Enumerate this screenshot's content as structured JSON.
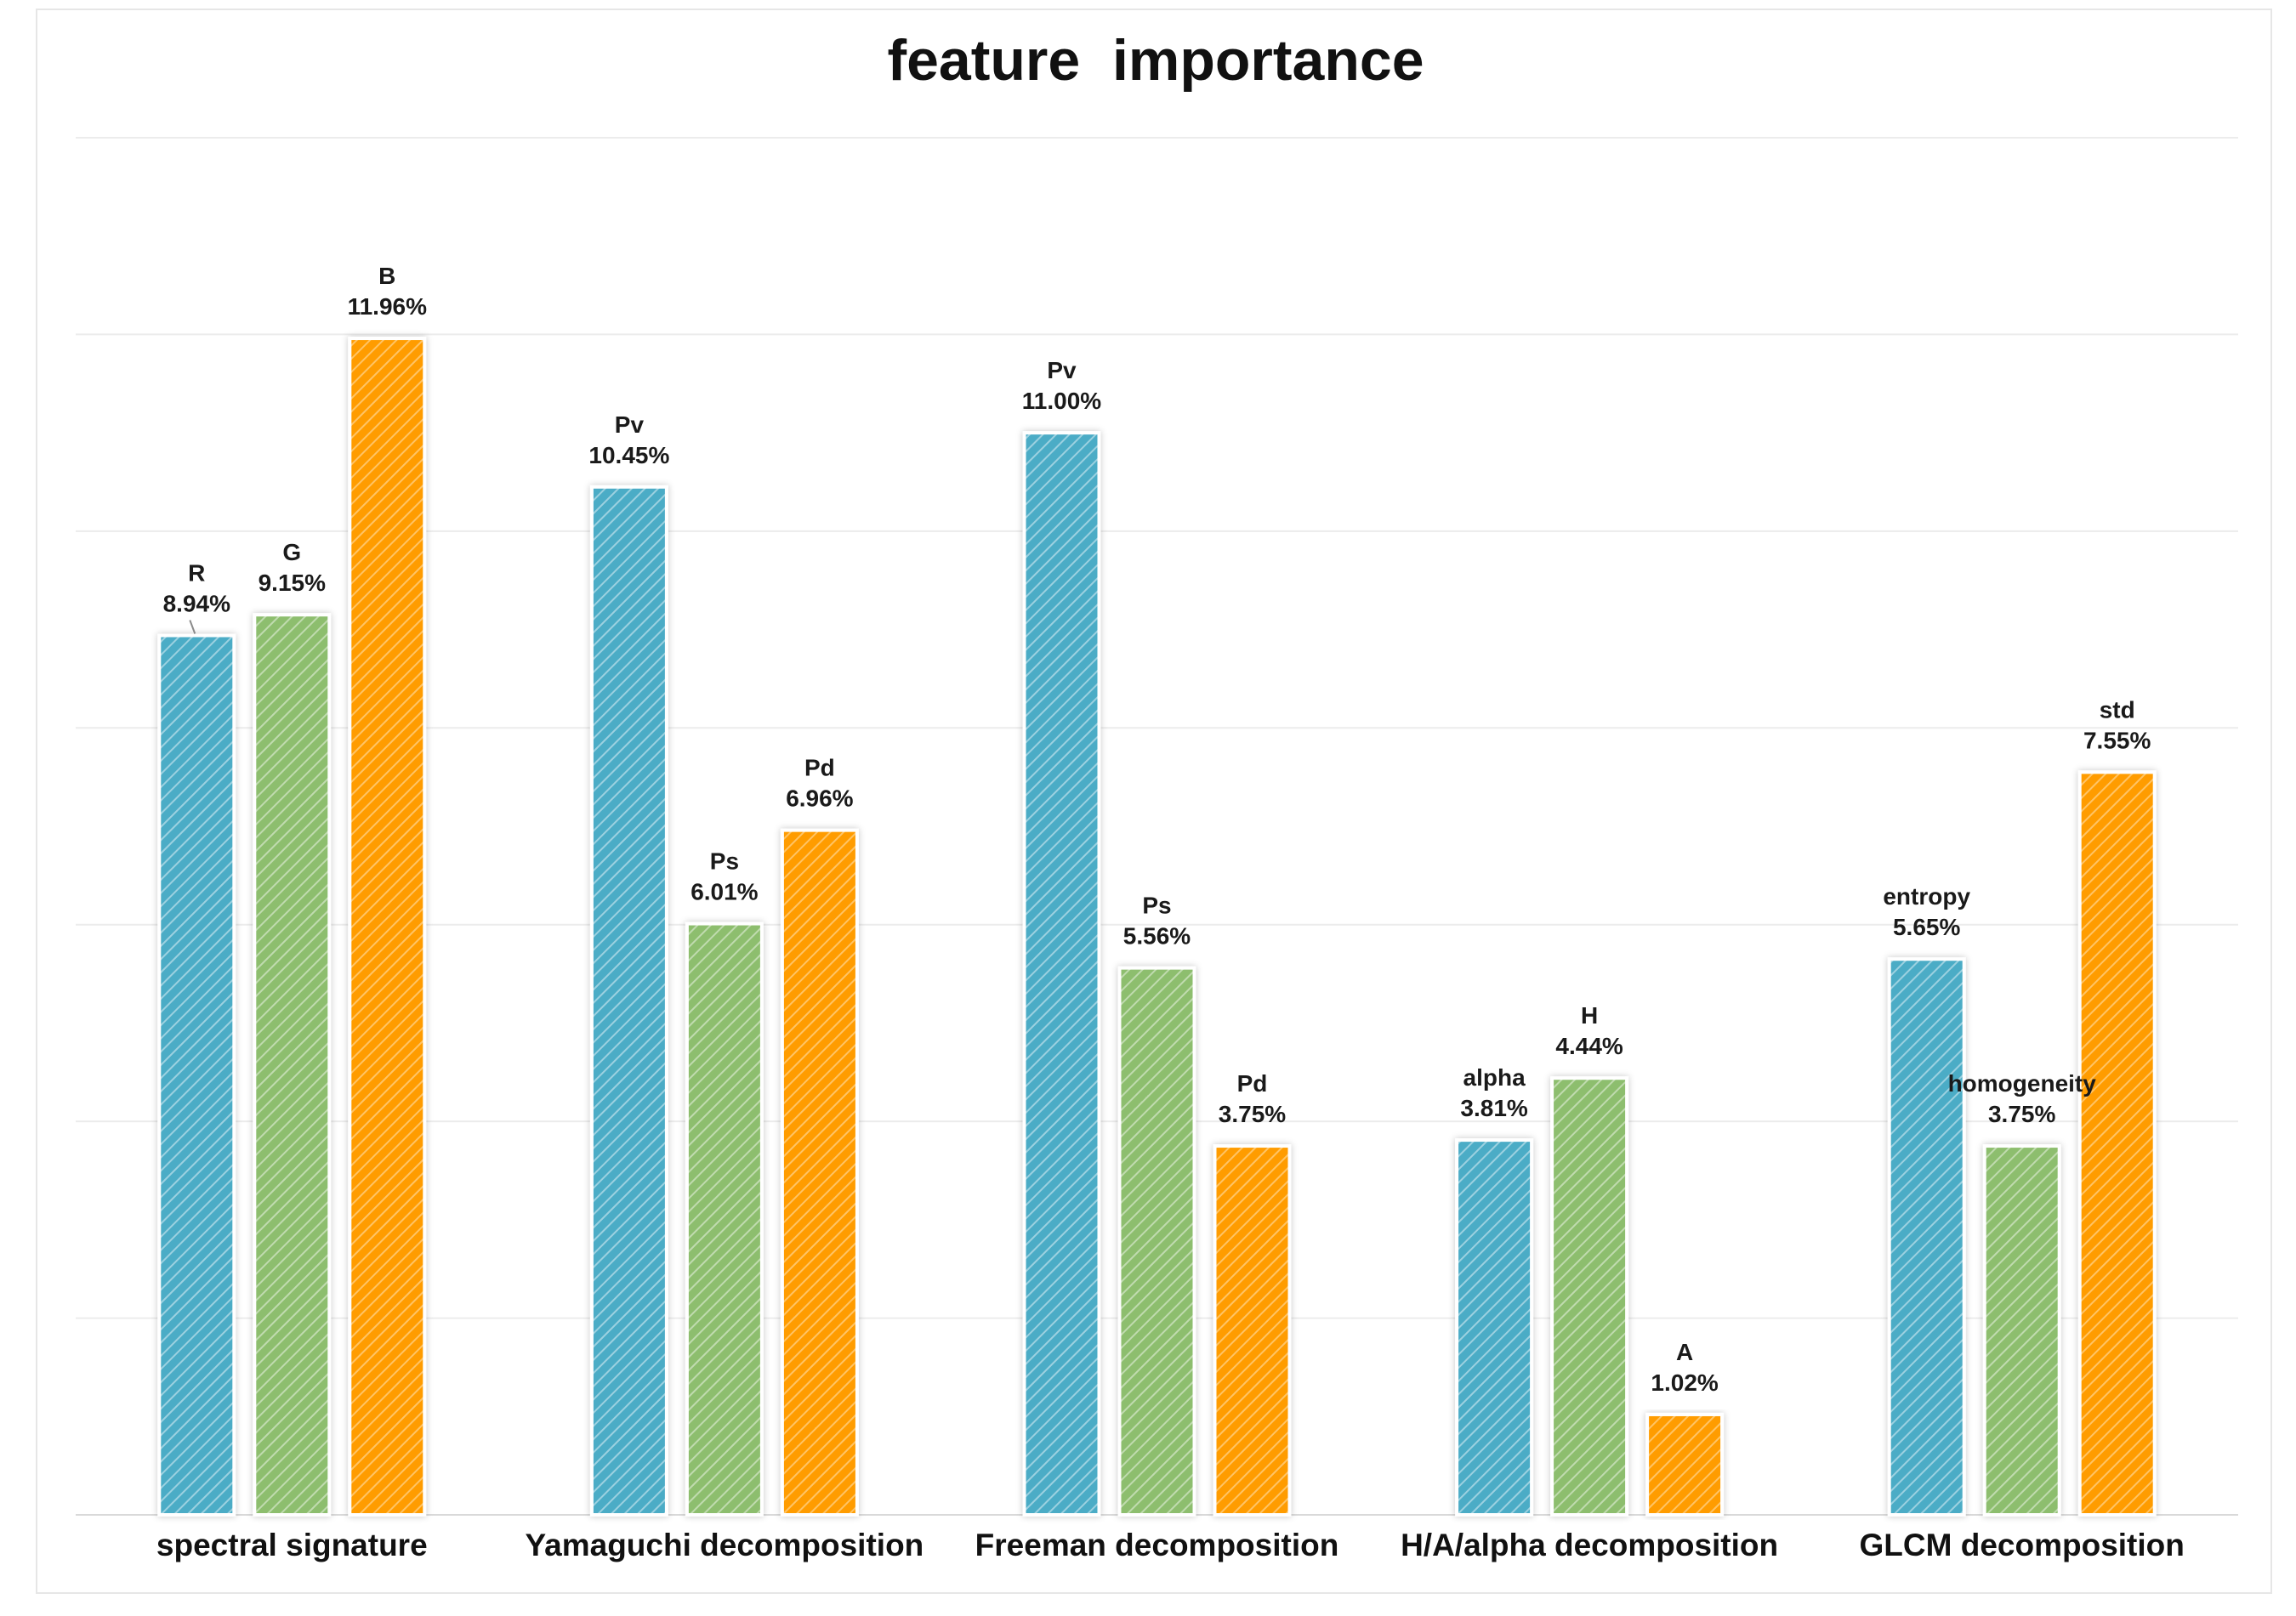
{
  "chart_data": {
    "type": "bar",
    "title": "feature  importance",
    "xlabel": "",
    "ylabel": "",
    "ylim": [
      0,
      14
    ],
    "grid": true,
    "legend": "none",
    "value_suffix": "%",
    "colors": {
      "teal": "#4bacc6",
      "green": "#8dbe6e",
      "orange": "#ff9c00",
      "hatch": "#ffffff"
    },
    "groups": [
      {
        "category": "spectral signature",
        "bars": [
          {
            "name": "R",
            "value": 8.94,
            "label": "8.94%",
            "color": "teal"
          },
          {
            "name": "G",
            "value": 9.15,
            "label": "9.15%",
            "color": "green"
          },
          {
            "name": "B",
            "value": 11.96,
            "label": "11.96%",
            "color": "orange"
          }
        ]
      },
      {
        "category": "Yamaguchi decomposition",
        "bars": [
          {
            "name": "Pv",
            "value": 10.45,
            "label": "10.45%",
            "color": "teal"
          },
          {
            "name": "Ps",
            "value": 6.01,
            "label": "6.01%",
            "color": "green"
          },
          {
            "name": "Pd",
            "value": 6.96,
            "label": "6.96%",
            "color": "orange"
          }
        ]
      },
      {
        "category": "Freeman decomposition",
        "bars": [
          {
            "name": "Pv",
            "value": 11.0,
            "label": "11.00%",
            "color": "teal"
          },
          {
            "name": "Ps",
            "value": 5.56,
            "label": "5.56%",
            "color": "green"
          },
          {
            "name": "Pd",
            "value": 3.75,
            "label": "3.75%",
            "color": "orange"
          }
        ]
      },
      {
        "category": "H/A/alpha decomposition",
        "bars": [
          {
            "name": "alpha",
            "value": 3.81,
            "label": "3.81%",
            "color": "teal"
          },
          {
            "name": "H",
            "value": 4.44,
            "label": "4.44%",
            "color": "green"
          },
          {
            "name": "A",
            "value": 1.02,
            "label": "1.02%",
            "color": "orange"
          }
        ]
      },
      {
        "category": "GLCM decomposition",
        "bars": [
          {
            "name": "entropy",
            "value": 5.65,
            "label": "5.65%",
            "color": "teal"
          },
          {
            "name": "homogeneity",
            "value": 3.75,
            "label": "3.75%",
            "color": "green"
          },
          {
            "name": "std",
            "value": 7.55,
            "label": "7.55%",
            "color": "orange"
          }
        ]
      }
    ]
  }
}
